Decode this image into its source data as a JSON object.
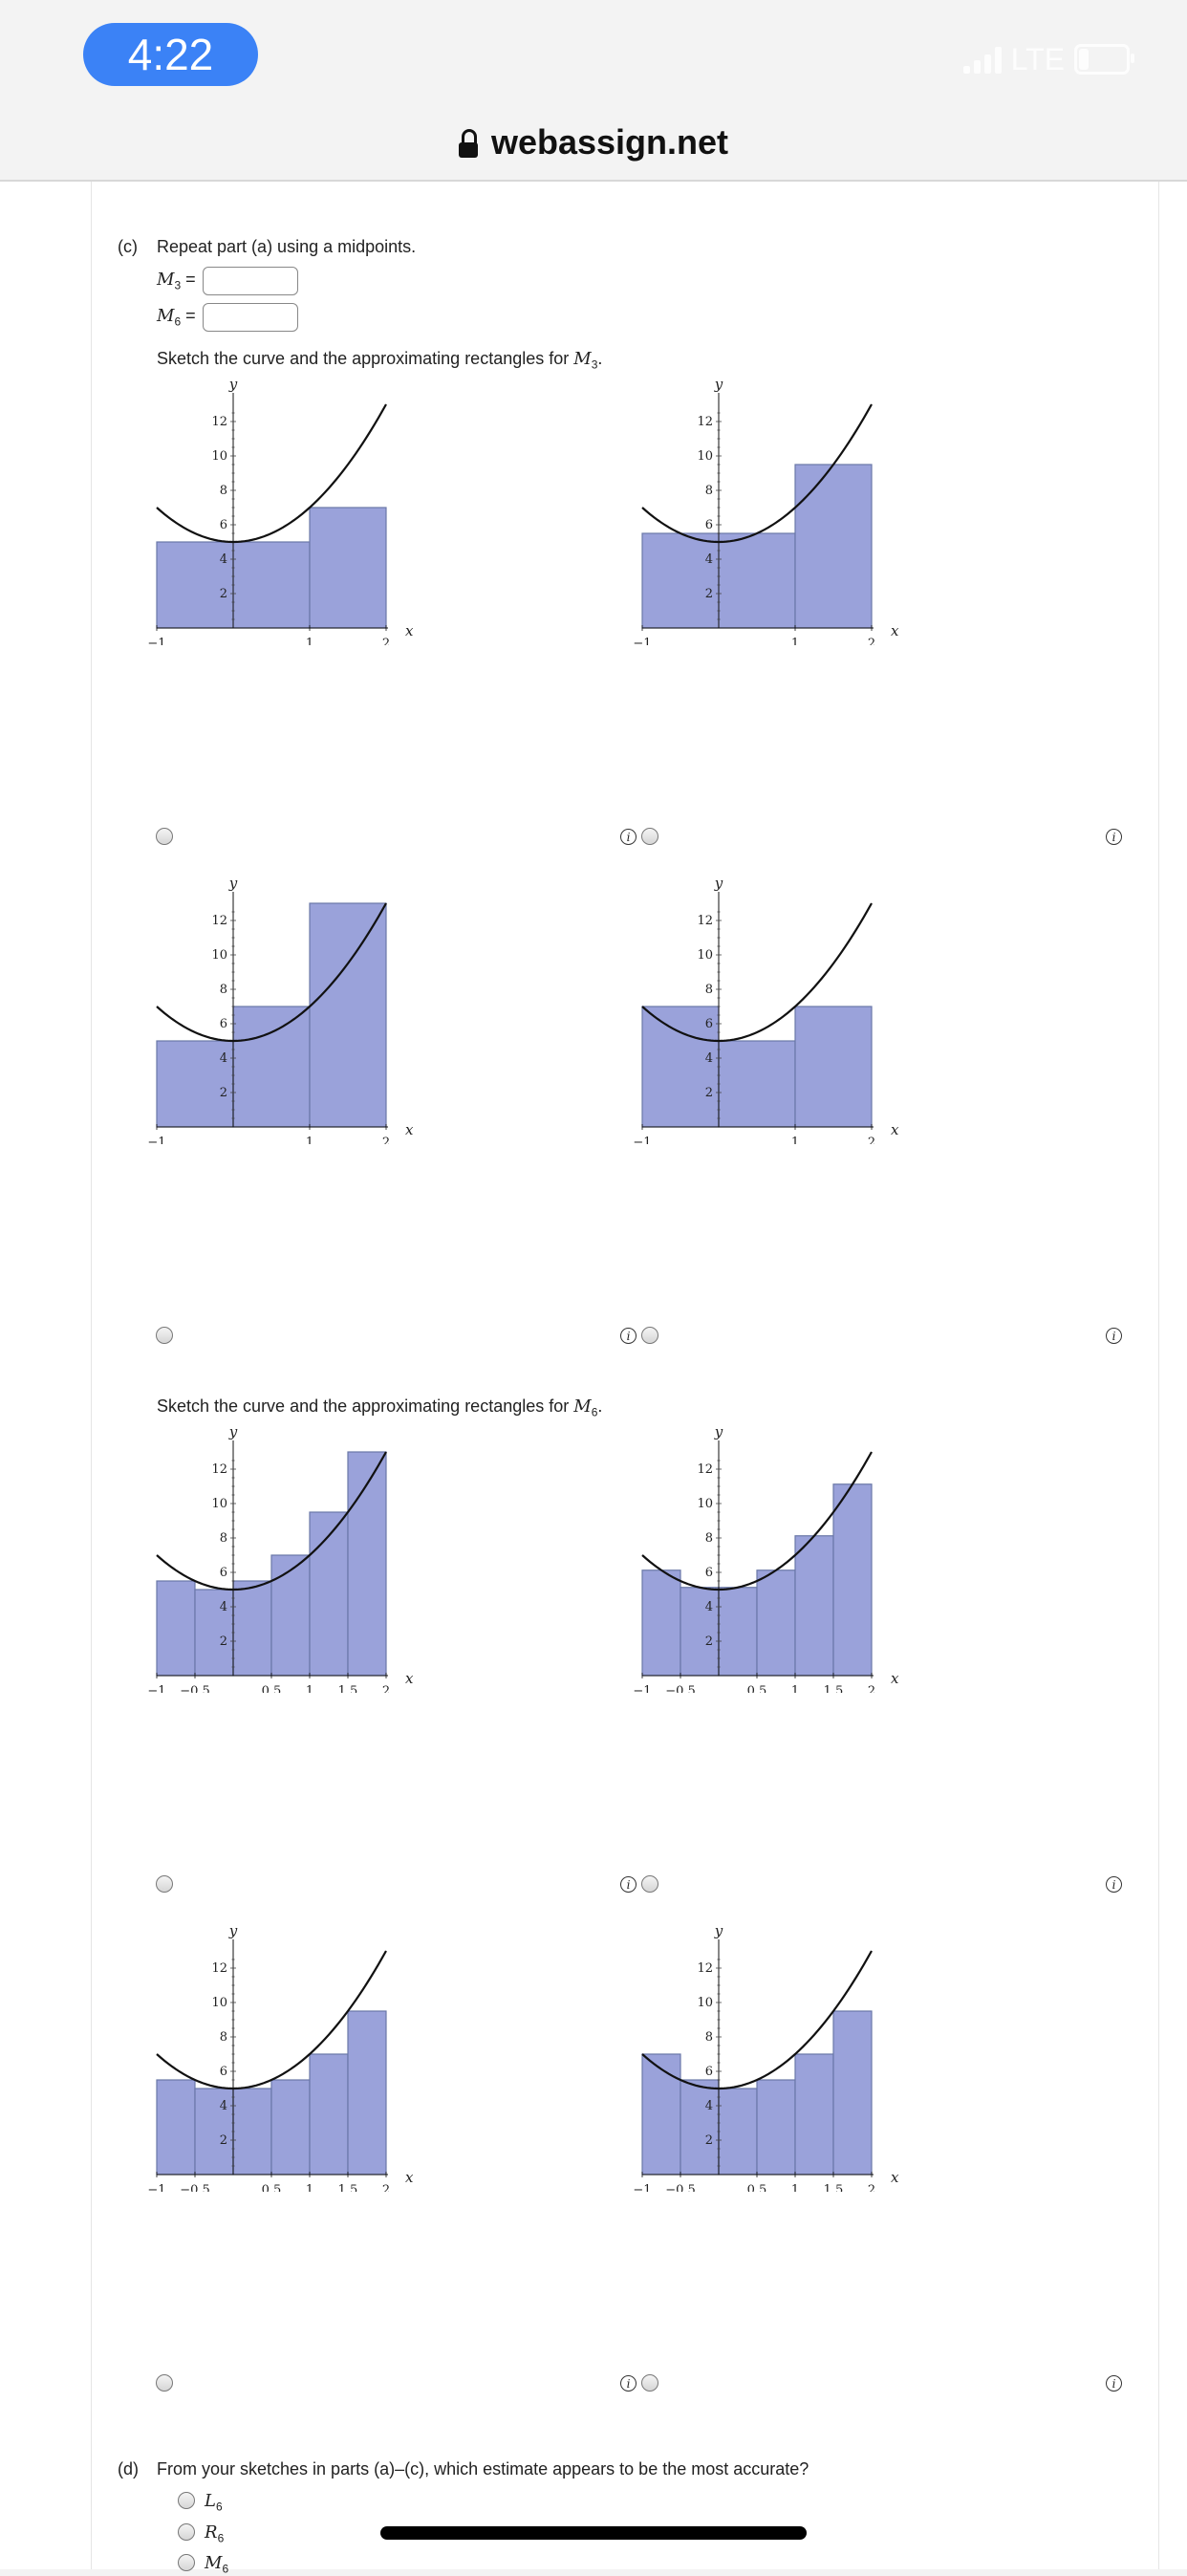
{
  "status_bar": {
    "time": "4:22",
    "network": "LTE"
  },
  "browser": {
    "url": "webassign.net"
  },
  "part_c": {
    "label": "(c)",
    "instruction": "Repeat part (a) using a midpoints.",
    "m3_symbol": "M",
    "m3_sub": "3",
    "m6_symbol": "M",
    "m6_sub": "6",
    "equals": "=",
    "m3_value": "",
    "m6_value": "",
    "sketch_m3_prefix": "Sketch the curve and the approximating rectangles for ",
    "sketch_m6_prefix": "Sketch the curve and the approximating rectangles for ",
    "period": "."
  },
  "part_d": {
    "label": "(d)",
    "question": "From your sketches in parts (a)–(c), which estimate appears to be the most accurate?",
    "options": [
      {
        "symbol": "L",
        "sub": "6"
      },
      {
        "symbol": "R",
        "sub": "6"
      },
      {
        "symbol": "M",
        "sub": "6"
      }
    ]
  },
  "info_glyph": "i",
  "chart_data": [
    {
      "type": "bar",
      "curve": "y = x^2 + 2x... plotted as parabola with minimum 5 at x = 0",
      "x_ticks": [
        "−1",
        "1",
        "2"
      ],
      "y_ticks": [
        "2",
        "4",
        "6",
        "8",
        "10",
        "12"
      ],
      "xlabel": "x",
      "ylabel": "y",
      "xlim": [
        -1,
        2
      ],
      "ylim": [
        0,
        13
      ],
      "bars": [
        {
          "x0": -1,
          "x1": 1,
          "h": 5
        },
        {
          "x0": 1,
          "x1": 2,
          "h": 7
        }
      ]
    },
    {
      "type": "bar",
      "x_ticks": [
        "−1",
        "1",
        "2"
      ],
      "y_ticks": [
        "2",
        "4",
        "6",
        "8",
        "10",
        "12"
      ],
      "xlabel": "x",
      "ylabel": "y",
      "xlim": [
        -1,
        2
      ],
      "ylim": [
        0,
        13
      ],
      "bars": [
        {
          "x0": -1,
          "x1": 1,
          "h": 5.5
        },
        {
          "x0": 1,
          "x1": 2,
          "h": 9.5
        }
      ]
    },
    {
      "type": "bar",
      "x_ticks": [
        "−1",
        "1",
        "2"
      ],
      "y_ticks": [
        "2",
        "4",
        "6",
        "8",
        "10",
        "12"
      ],
      "xlabel": "x",
      "ylabel": "y",
      "xlim": [
        -1,
        2
      ],
      "ylim": [
        0,
        13
      ],
      "bars": [
        {
          "x0": -1,
          "x1": 0,
          "h": 5
        },
        {
          "x0": 0,
          "x1": 1,
          "h": 7
        },
        {
          "x0": 1,
          "x1": 2,
          "h": 13
        }
      ]
    },
    {
      "type": "bar",
      "x_ticks": [
        "−1",
        "1",
        "2"
      ],
      "y_ticks": [
        "2",
        "4",
        "6",
        "8",
        "10",
        "12"
      ],
      "xlabel": "x",
      "ylabel": "y",
      "xlim": [
        -1,
        2
      ],
      "ylim": [
        0,
        13
      ],
      "bars": [
        {
          "x0": -1,
          "x1": 0,
          "h": 7
        },
        {
          "x0": 0,
          "x1": 1,
          "h": 5
        },
        {
          "x0": 1,
          "x1": 2,
          "h": 7
        }
      ]
    },
    {
      "type": "bar",
      "x_ticks": [
        "−1",
        "−0.5",
        "0.5",
        "1",
        "1.5",
        "2"
      ],
      "y_ticks": [
        "2",
        "4",
        "6",
        "8",
        "10",
        "12"
      ],
      "xlabel": "x",
      "ylabel": "y",
      "xlim": [
        -1,
        2
      ],
      "ylim": [
        0,
        13
      ],
      "bars": [
        {
          "x0": -1,
          "x1": -0.5,
          "h": 5.5
        },
        {
          "x0": -0.5,
          "x1": 0,
          "h": 5.0
        },
        {
          "x0": 0,
          "x1": 0.5,
          "h": 5.5
        },
        {
          "x0": 0.5,
          "x1": 1,
          "h": 7.0
        },
        {
          "x0": 1,
          "x1": 1.5,
          "h": 9.5
        },
        {
          "x0": 1.5,
          "x1": 2,
          "h": 13.0
        }
      ]
    },
    {
      "type": "bar",
      "x_ticks": [
        "−1",
        "−0.5",
        "0.5",
        "1",
        "1.5",
        "2"
      ],
      "y_ticks": [
        "2",
        "4",
        "6",
        "8",
        "10",
        "12"
      ],
      "xlabel": "x",
      "ylabel": "y",
      "xlim": [
        -1,
        2
      ],
      "ylim": [
        0,
        13
      ],
      "bars": [
        {
          "x0": -1,
          "x1": -0.5,
          "h": 6.125
        },
        {
          "x0": -0.5,
          "x1": 0,
          "h": 5.125
        },
        {
          "x0": 0,
          "x1": 0.5,
          "h": 5.125
        },
        {
          "x0": 0.5,
          "x1": 1,
          "h": 6.125
        },
        {
          "x0": 1,
          "x1": 1.5,
          "h": 8.125
        },
        {
          "x0": 1.5,
          "x1": 2,
          "h": 11.125
        }
      ]
    },
    {
      "type": "bar",
      "x_ticks": [
        "−1",
        "−0.5",
        "0.5",
        "1",
        "1.5",
        "2"
      ],
      "y_ticks": [
        "2",
        "4",
        "6",
        "8",
        "10",
        "12"
      ],
      "xlabel": "x",
      "ylabel": "y",
      "xlim": [
        -1,
        2
      ],
      "ylim": [
        0,
        13
      ],
      "bars": [
        {
          "x0": -1,
          "x1": -0.5,
          "h": 5.5
        },
        {
          "x0": -0.5,
          "x1": 0,
          "h": 5.0
        },
        {
          "x0": 0,
          "x1": 0.5,
          "h": 5.0
        },
        {
          "x0": 0.5,
          "x1": 1,
          "h": 5.5
        },
        {
          "x0": 1,
          "x1": 1.5,
          "h": 7.0
        },
        {
          "x0": 1.5,
          "x1": 2,
          "h": 9.5
        }
      ]
    },
    {
      "type": "bar",
      "x_ticks": [
        "−1",
        "−0.5",
        "0.5",
        "1",
        "1.5",
        "2"
      ],
      "y_ticks": [
        "2",
        "4",
        "6",
        "8",
        "10",
        "12"
      ],
      "xlabel": "x",
      "ylabel": "y",
      "xlim": [
        -1,
        2
      ],
      "ylim": [
        0,
        13
      ],
      "bars": [
        {
          "x0": -1,
          "x1": -0.5,
          "h": 7.0
        },
        {
          "x0": -0.5,
          "x1": 0,
          "h": 5.5
        },
        {
          "x0": 0,
          "x1": 0.5,
          "h": 5.0
        },
        {
          "x0": 0.5,
          "x1": 1,
          "h": 5.5
        },
        {
          "x0": 1,
          "x1": 1.5,
          "h": 7.0
        },
        {
          "x0": 1.5,
          "x1": 2,
          "h": 9.5
        }
      ]
    }
  ],
  "colors": {
    "bar_fill": "#9aa2da",
    "bar_stroke": "#6a78a8",
    "curve": "#111111",
    "time_pill": "#3b82f6"
  }
}
